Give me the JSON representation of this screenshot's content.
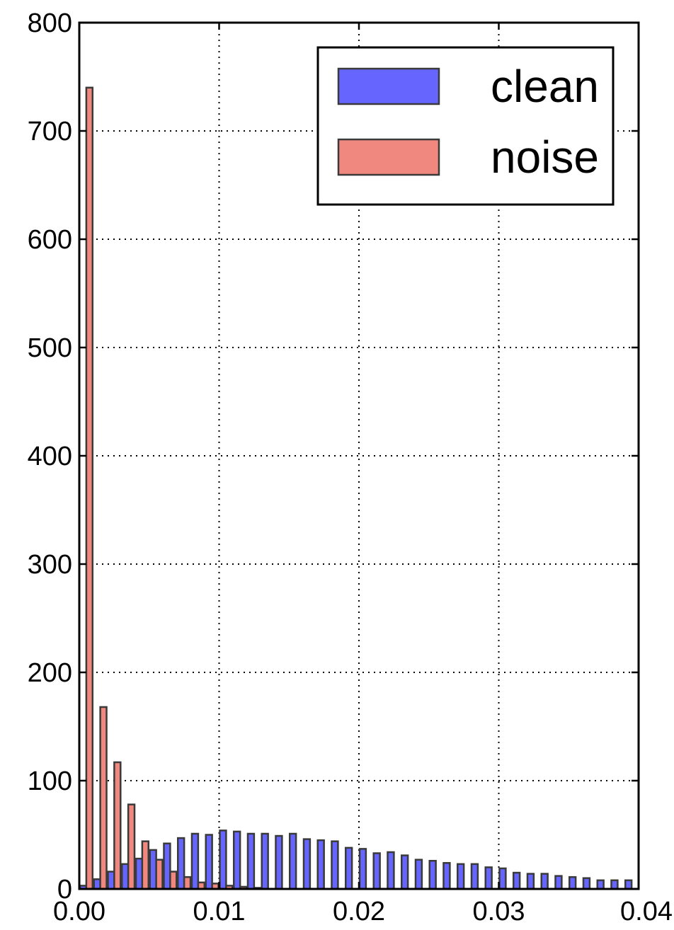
{
  "chart_data": {
    "type": "bar",
    "xlim": [
      0.0,
      0.04
    ],
    "ylim": [
      0,
      800
    ],
    "x_ticks": [
      "0.00",
      "0.01",
      "0.02",
      "0.03",
      "0.04"
    ],
    "y_ticks": [
      "0",
      "100",
      "200",
      "300",
      "400",
      "500",
      "600",
      "700",
      "800"
    ],
    "grid": true,
    "legend_position": "top-right",
    "bin_width": 0.001,
    "bin_starts": [
      0.0,
      0.001,
      0.002,
      0.003,
      0.004,
      0.005,
      0.006,
      0.007,
      0.008,
      0.009,
      0.01,
      0.011,
      0.012,
      0.013,
      0.014,
      0.015,
      0.016,
      0.017,
      0.018,
      0.019,
      0.02,
      0.021,
      0.022,
      0.023,
      0.024,
      0.025,
      0.026,
      0.027,
      0.028,
      0.029,
      0.03,
      0.031,
      0.032,
      0.033,
      0.034,
      0.035,
      0.036,
      0.037,
      0.038,
      0.039
    ],
    "series": [
      {
        "name": "clean",
        "color": "#6666ff",
        "values": [
          3,
          9,
          16,
          23,
          28,
          36,
          42,
          47,
          51,
          50,
          54,
          53,
          51,
          51,
          49,
          51,
          46,
          45,
          44,
          38,
          37,
          33,
          34,
          31,
          27,
          26,
          24,
          23,
          23,
          20,
          19,
          15,
          14,
          14,
          12,
          11,
          10,
          8,
          8,
          8
        ]
      },
      {
        "name": "noise",
        "color": "#f08880",
        "values": [
          740,
          168,
          117,
          78,
          44,
          27,
          16,
          11,
          6,
          5,
          3,
          2,
          1,
          0,
          0,
          0,
          0,
          0,
          0,
          0,
          0,
          0,
          0,
          0,
          0,
          0,
          0,
          0,
          0,
          0,
          0,
          0,
          0,
          0,
          0,
          0,
          0,
          0,
          0,
          0
        ]
      }
    ]
  }
}
